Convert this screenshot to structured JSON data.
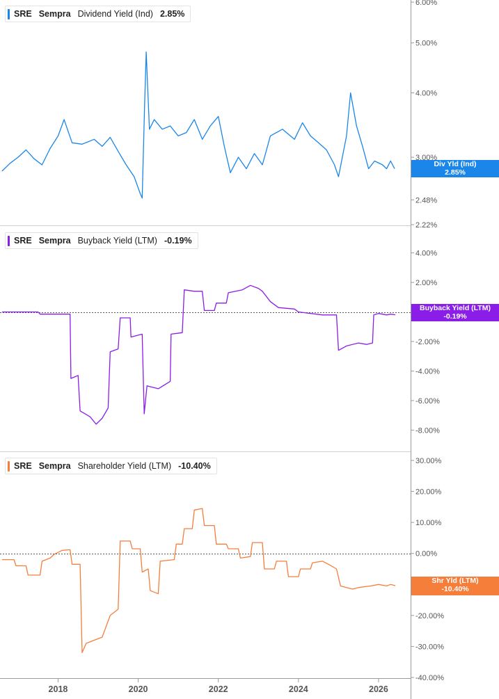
{
  "chart_data": [
    {
      "type": "line",
      "ticker": "SRE",
      "company": "Sempra",
      "metric": "Dividend Yield (Ind)",
      "current": "2.85%",
      "tag": {
        "line1": "Div Yld (Ind)",
        "line2": "2.85%"
      },
      "color": "#1a86ea",
      "ylim": [
        2.22,
        6.0
      ],
      "log_scale": true,
      "yticks": [
        {
          "v": 6.0,
          "label": "6.00%"
        },
        {
          "v": 5.0,
          "label": "5.00%"
        },
        {
          "v": 4.0,
          "label": "4.00%"
        },
        {
          "v": 3.0,
          "label": "3.00%"
        },
        {
          "v": 2.48,
          "label": "2.48%"
        },
        {
          "v": 2.22,
          "label": "2.22%"
        }
      ],
      "series": [
        {
          "points": [
            [
              2016.6,
              2.82
            ],
            [
              2016.8,
              2.92
            ],
            [
              2017.0,
              3.0
            ],
            [
              2017.2,
              3.1
            ],
            [
              2017.4,
              2.98
            ],
            [
              2017.6,
              2.9
            ],
            [
              2017.8,
              3.12
            ],
            [
              2018.0,
              3.3
            ],
            [
              2018.15,
              3.55
            ],
            [
              2018.35,
              3.2
            ],
            [
              2018.6,
              3.18
            ],
            [
              2018.9,
              3.25
            ],
            [
              2019.1,
              3.15
            ],
            [
              2019.3,
              3.28
            ],
            [
              2019.5,
              3.08
            ],
            [
              2019.7,
              2.9
            ],
            [
              2019.9,
              2.75
            ],
            [
              2020.05,
              2.55
            ],
            [
              2020.1,
              2.5
            ],
            [
              2020.16,
              3.8
            ],
            [
              2020.2,
              4.8
            ],
            [
              2020.28,
              3.4
            ],
            [
              2020.4,
              3.55
            ],
            [
              2020.6,
              3.4
            ],
            [
              2020.8,
              3.45
            ],
            [
              2021.0,
              3.3
            ],
            [
              2021.2,
              3.35
            ],
            [
              2021.4,
              3.55
            ],
            [
              2021.6,
              3.25
            ],
            [
              2021.8,
              3.45
            ],
            [
              2022.0,
              3.6
            ],
            [
              2022.15,
              3.15
            ],
            [
              2022.3,
              2.8
            ],
            [
              2022.5,
              3.0
            ],
            [
              2022.7,
              2.85
            ],
            [
              2022.9,
              3.05
            ],
            [
              2023.1,
              2.9
            ],
            [
              2023.3,
              3.3
            ],
            [
              2023.6,
              3.4
            ],
            [
              2023.9,
              3.25
            ],
            [
              2024.1,
              3.5
            ],
            [
              2024.3,
              3.3
            ],
            [
              2024.5,
              3.2
            ],
            [
              2024.7,
              3.1
            ],
            [
              2024.9,
              2.9
            ],
            [
              2025.0,
              2.75
            ],
            [
              2025.2,
              3.3
            ],
            [
              2025.3,
              4.0
            ],
            [
              2025.45,
              3.45
            ],
            [
              2025.6,
              3.15
            ],
            [
              2025.75,
              2.85
            ],
            [
              2025.9,
              2.95
            ],
            [
              2026.1,
              2.9
            ],
            [
              2026.2,
              2.85
            ],
            [
              2026.3,
              2.95
            ],
            [
              2026.4,
              2.85
            ]
          ]
        }
      ]
    },
    {
      "type": "line",
      "ticker": "SRE",
      "company": "Sempra",
      "metric": "Buyback Yield (LTM)",
      "current": "-0.19%",
      "tag": {
        "line1": "Buyback Yield (LTM)",
        "line2": "-0.19%"
      },
      "color": "#8a1de8",
      "ylim": [
        -8.5,
        4.5
      ],
      "baseline": 0,
      "yticks": [
        {
          "v": 4,
          "label": "4.00%"
        },
        {
          "v": 2,
          "label": "2.00%"
        },
        {
          "v": -2,
          "label": "-2.00%"
        },
        {
          "v": -4,
          "label": "-4.00%"
        },
        {
          "v": -6,
          "label": "-6.00%"
        },
        {
          "v": -8,
          "label": "-8.00%"
        }
      ],
      "series": [
        {
          "points": [
            [
              2016.6,
              0.0
            ],
            [
              2017.5,
              0.0
            ],
            [
              2017.55,
              -0.15
            ],
            [
              2018.3,
              -0.15
            ],
            [
              2018.32,
              -4.5
            ],
            [
              2018.5,
              -4.3
            ],
            [
              2018.55,
              -6.7
            ],
            [
              2018.8,
              -7.1
            ],
            [
              2018.95,
              -7.6
            ],
            [
              2019.1,
              -7.2
            ],
            [
              2019.25,
              -6.5
            ],
            [
              2019.3,
              -2.7
            ],
            [
              2019.5,
              -2.5
            ],
            [
              2019.55,
              -0.4
            ],
            [
              2019.8,
              -0.4
            ],
            [
              2019.82,
              -1.7
            ],
            [
              2020.1,
              -1.5
            ],
            [
              2020.15,
              -6.9
            ],
            [
              2020.22,
              -5.0
            ],
            [
              2020.5,
              -5.2
            ],
            [
              2020.8,
              -4.7
            ],
            [
              2020.82,
              -1.5
            ],
            [
              2021.1,
              -1.4
            ],
            [
              2021.15,
              1.5
            ],
            [
              2021.4,
              1.4
            ],
            [
              2021.6,
              1.4
            ],
            [
              2021.65,
              0.1
            ],
            [
              2021.9,
              0.1
            ],
            [
              2021.95,
              0.6
            ],
            [
              2022.2,
              0.6
            ],
            [
              2022.25,
              1.3
            ],
            [
              2022.6,
              1.5
            ],
            [
              2022.8,
              1.8
            ],
            [
              2023.0,
              1.6
            ],
            [
              2023.1,
              1.4
            ],
            [
              2023.3,
              0.7
            ],
            [
              2023.5,
              0.3
            ],
            [
              2023.9,
              0.2
            ],
            [
              2024.0,
              0.0
            ],
            [
              2024.6,
              -0.2
            ],
            [
              2024.95,
              -0.2
            ],
            [
              2025.0,
              -2.6
            ],
            [
              2025.2,
              -2.3
            ],
            [
              2025.5,
              -2.1
            ],
            [
              2025.7,
              -2.2
            ],
            [
              2025.85,
              -2.1
            ],
            [
              2025.88,
              -0.2
            ],
            [
              2026.0,
              -0.1
            ],
            [
              2026.2,
              -0.2
            ],
            [
              2026.3,
              -0.15
            ],
            [
              2026.42,
              -0.19
            ]
          ]
        }
      ]
    },
    {
      "type": "line",
      "ticker": "SRE",
      "company": "Sempra",
      "metric": "Shareholder Yield (LTM)",
      "current": "-10.40%",
      "tag": {
        "line1": "Shr Yld (LTM)",
        "line2": "-10.40%"
      },
      "color": "#f57e3b",
      "ylim": [
        -40,
        30
      ],
      "baseline": 0,
      "yticks": [
        {
          "v": 30,
          "label": "30.00%"
        },
        {
          "v": 20,
          "label": "20.00%"
        },
        {
          "v": 10,
          "label": "10.00%"
        },
        {
          "v": 0,
          "label": "0.00%"
        },
        {
          "v": -10,
          "label": "-10.00%"
        },
        {
          "v": -20,
          "label": "-20.00%"
        },
        {
          "v": -30,
          "label": "-30.00%"
        },
        {
          "v": -40,
          "label": "-40.00%"
        }
      ],
      "series": [
        {
          "points": [
            [
              2016.6,
              -2.0
            ],
            [
              2016.9,
              -2.0
            ],
            [
              2016.95,
              -4.0
            ],
            [
              2017.2,
              -4.0
            ],
            [
              2017.25,
              -7.0
            ],
            [
              2017.55,
              -7.0
            ],
            [
              2017.6,
              -2.5
            ],
            [
              2017.8,
              -1.5
            ],
            [
              2017.9,
              -0.3
            ],
            [
              2018.1,
              1.0
            ],
            [
              2018.3,
              1.2
            ],
            [
              2018.35,
              -3.5
            ],
            [
              2018.55,
              -3.5
            ],
            [
              2018.6,
              -32.0
            ],
            [
              2018.7,
              -29.0
            ],
            [
              2018.9,
              -28.0
            ],
            [
              2019.1,
              -27.0
            ],
            [
              2019.3,
              -20.0
            ],
            [
              2019.5,
              -18.0
            ],
            [
              2019.55,
              4.0
            ],
            [
              2019.8,
              4.0
            ],
            [
              2019.85,
              1.5
            ],
            [
              2020.05,
              1.5
            ],
            [
              2020.1,
              -6.0
            ],
            [
              2020.25,
              -5.0
            ],
            [
              2020.3,
              -12.0
            ],
            [
              2020.5,
              -13.0
            ],
            [
              2020.55,
              -2.5
            ],
            [
              2020.9,
              -2.0
            ],
            [
              2020.95,
              3.0
            ],
            [
              2021.1,
              3.0
            ],
            [
              2021.15,
              8.0
            ],
            [
              2021.35,
              8.0
            ],
            [
              2021.4,
              14.0
            ],
            [
              2021.6,
              14.5
            ],
            [
              2021.65,
              9.0
            ],
            [
              2021.9,
              9.0
            ],
            [
              2021.95,
              3.0
            ],
            [
              2022.2,
              3.0
            ],
            [
              2022.25,
              1.5
            ],
            [
              2022.5,
              1.5
            ],
            [
              2022.55,
              -1.5
            ],
            [
              2022.8,
              -1.0
            ],
            [
              2022.85,
              3.5
            ],
            [
              2023.1,
              3.5
            ],
            [
              2023.15,
              -5.0
            ],
            [
              2023.4,
              -5.0
            ],
            [
              2023.45,
              -2.5
            ],
            [
              2023.7,
              -2.5
            ],
            [
              2023.75,
              -7.5
            ],
            [
              2024.0,
              -7.5
            ],
            [
              2024.05,
              -5.0
            ],
            [
              2024.3,
              -5.0
            ],
            [
              2024.35,
              -3.0
            ],
            [
              2024.6,
              -2.5
            ],
            [
              2024.75,
              -3.5
            ],
            [
              2024.95,
              -5.0
            ],
            [
              2025.05,
              -10.5
            ],
            [
              2025.35,
              -11.5
            ],
            [
              2025.5,
              -11.0
            ],
            [
              2025.8,
              -10.5
            ],
            [
              2026.0,
              -10.0
            ],
            [
              2026.2,
              -10.5
            ],
            [
              2026.3,
              -10.0
            ],
            [
              2026.42,
              -10.4
            ]
          ]
        }
      ]
    }
  ],
  "x_axis": {
    "range": [
      2016.55,
      2026.8
    ],
    "ticks": [
      {
        "v": 2018,
        "label": "2018"
      },
      {
        "v": 2020,
        "label": "2020"
      },
      {
        "v": 2022,
        "label": "2022"
      },
      {
        "v": 2024,
        "label": "2024"
      },
      {
        "v": 2026,
        "label": "2026"
      }
    ]
  }
}
